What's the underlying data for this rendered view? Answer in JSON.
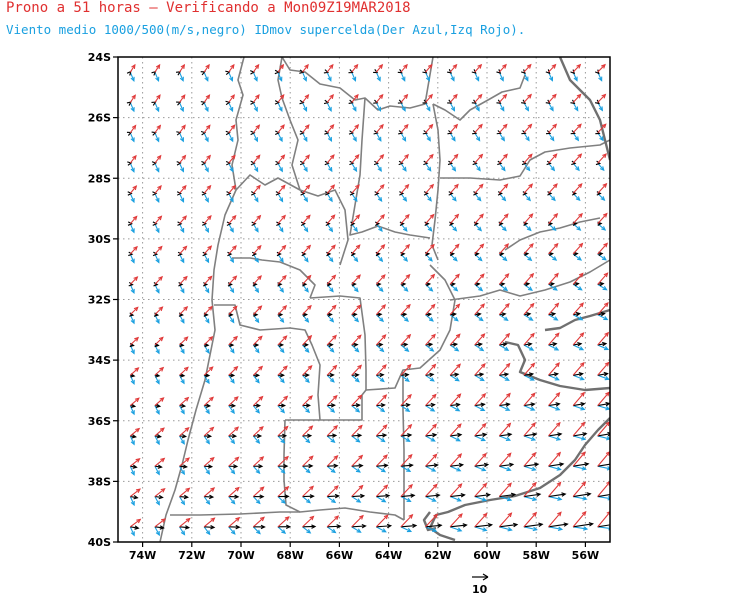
{
  "title_line1": "Prono a 51 horas — Verificando a Mon09Z19MAR2018",
  "title_line2": "Viento medio 1000/500(m/s,negro) IDmov supercelda(Der Azul,Izq Rojo).",
  "axes": {
    "lon_range": [
      -75,
      -55
    ],
    "lat_range": [
      -40,
      -24
    ],
    "lon_ticks": [
      "74W",
      "72W",
      "70W",
      "68W",
      "66W",
      "64W",
      "62W",
      "60W",
      "58W",
      "56W"
    ],
    "lon_values": [
      -74,
      -72,
      -70,
      -68,
      -66,
      -64,
      -62,
      -60,
      -58,
      -56
    ],
    "lat_ticks": [
      "24S",
      "26S",
      "28S",
      "30S",
      "32S",
      "34S",
      "36S",
      "38S",
      "40S"
    ],
    "lat_values": [
      -24,
      -26,
      -28,
      -30,
      -32,
      -34,
      -36,
      -38,
      -40
    ],
    "grid": true
  },
  "legend": {
    "reference_vector_label": "10",
    "reference_vector_ms": 10
  },
  "colors": {
    "mean_wind": "#000000",
    "right_mover": "#1aa0e0",
    "left_mover": "#e03a3a",
    "borders": "#808080",
    "grid": "#9a9a9a",
    "title1": "#e03030",
    "title2": "#1aa0e0"
  }
}
